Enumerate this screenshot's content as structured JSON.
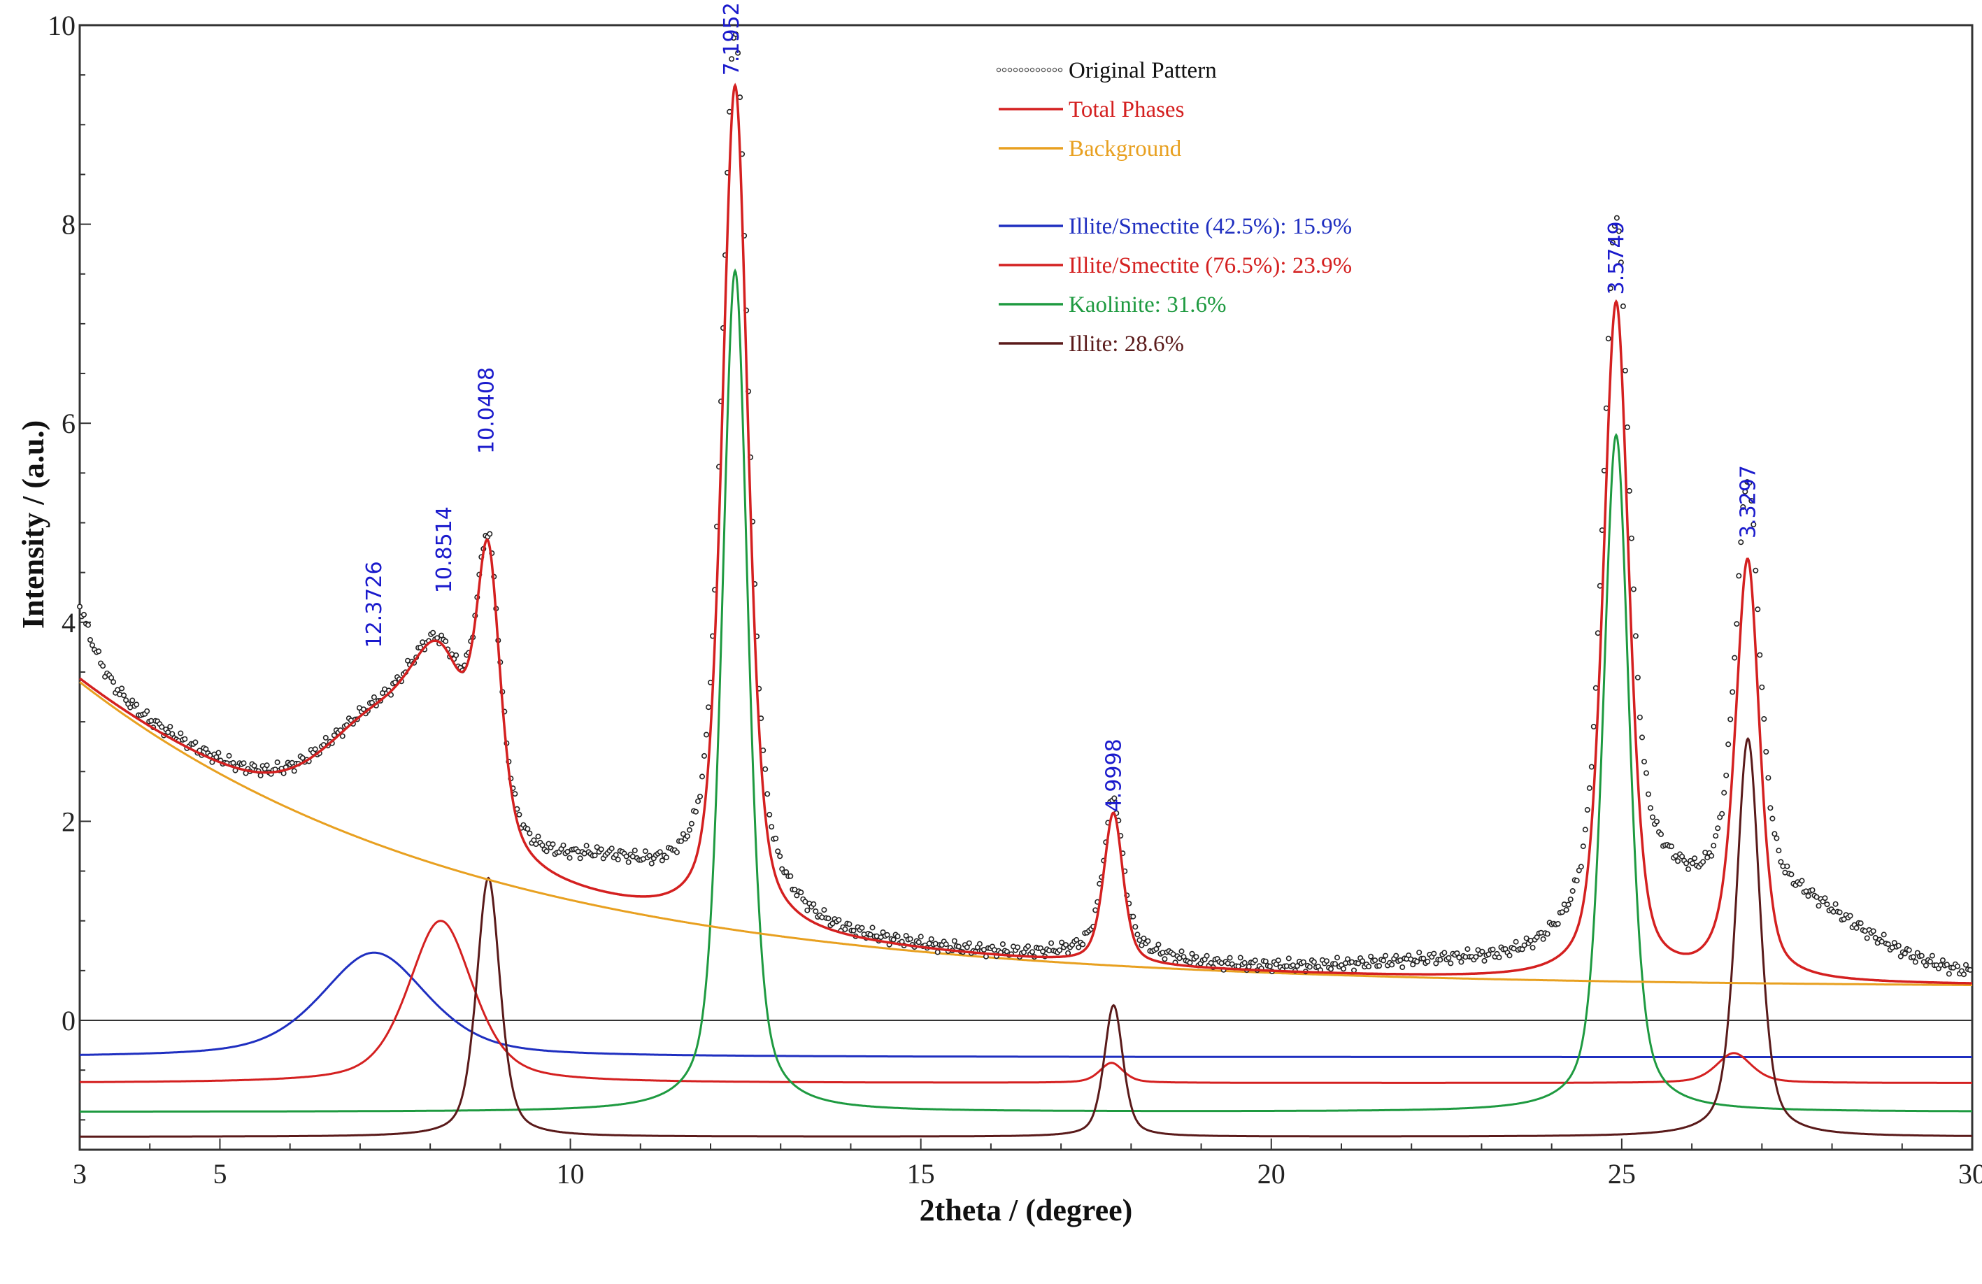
{
  "chart_data": {
    "type": "line",
    "title": "",
    "xlabel": "2theta / (degree)",
    "ylabel": "Intensity / (a.u.)",
    "xlim": [
      3,
      30
    ],
    "ylim": [
      -1.3,
      10
    ],
    "x_ticks": [
      3,
      5,
      10,
      15,
      20,
      25,
      30
    ],
    "y_ticks": [
      0,
      2,
      4,
      6,
      8,
      10
    ],
    "grid": false,
    "legend_position": "top-center",
    "background": {
      "name": "Background",
      "color": "#e8a020",
      "offset": 0.33,
      "amplitude": 3.07,
      "decay": 5.6
    },
    "components": [
      {
        "name": "Illite/Smectite (42.5%): 15.9%",
        "color": "#1f2fc0",
        "baseline": -0.37,
        "peaks": [
          {
            "center": 7.2,
            "height": 1.05,
            "hwhm": 0.9
          }
        ]
      },
      {
        "name": "Illite/Smectite (76.5%): 23.9%",
        "color": "#d42020",
        "baseline": -0.63,
        "peaks": [
          {
            "center": 8.15,
            "height": 1.63,
            "hwhm": 0.55
          },
          {
            "center": 17.72,
            "height": 0.2,
            "hwhm": 0.2
          },
          {
            "center": 26.6,
            "height": 0.3,
            "hwhm": 0.3
          }
        ]
      },
      {
        "name": "Kaolinite: 31.6%",
        "color": "#1e9a40",
        "baseline": -0.92,
        "peaks": [
          {
            "center": 12.35,
            "height": 8.45,
            "hwhm": 0.22
          },
          {
            "center": 24.92,
            "height": 6.8,
            "hwhm": 0.22
          }
        ]
      },
      {
        "name": "Illite: 28.6%",
        "color": "#5a1a1a",
        "baseline": -1.17,
        "peaks": [
          {
            "center": 8.83,
            "height": 2.6,
            "hwhm": 0.2
          },
          {
            "center": 17.75,
            "height": 1.32,
            "hwhm": 0.16
          },
          {
            "center": 26.8,
            "height": 4.0,
            "hwhm": 0.2
          }
        ]
      }
    ],
    "total": {
      "name": "Total Phases",
      "color": "#d42020"
    },
    "original": {
      "name": "Original Pattern",
      "color": "#222222",
      "extra_peaks": [
        {
          "center": 2.6,
          "height": 1.3,
          "hwhm": 0.45
        },
        {
          "center": 10.6,
          "height": 0.35,
          "hwhm": 1.0
        },
        {
          "center": 12.3,
          "height": 0.5,
          "hwhm": 0.7
        },
        {
          "center": 17.8,
          "height": 0.12,
          "hwhm": 0.8
        },
        {
          "center": 22.5,
          "height": 0.1,
          "hwhm": 1.5
        },
        {
          "center": 25.3,
          "height": 0.85,
          "hwhm": 0.9
        },
        {
          "center": 27.4,
          "height": 0.75,
          "hwhm": 1.3
        }
      ]
    },
    "peak_labels": [
      {
        "text": "12.3726",
        "x": 7.2,
        "y": 3.7
      },
      {
        "text": "10.8514",
        "x": 8.2,
        "y": 4.25
      },
      {
        "text": "10.0408",
        "x": 8.8,
        "y": 5.65
      },
      {
        "text": "7.1952",
        "x": 12.3,
        "y": 9.45
      },
      {
        "text": "4.9998",
        "x": 17.75,
        "y": 2.05
      },
      {
        "text": "3.5749",
        "x": 24.92,
        "y": 7.25
      },
      {
        "text": "3.3297",
        "x": 26.8,
        "y": 4.8
      }
    ]
  }
}
